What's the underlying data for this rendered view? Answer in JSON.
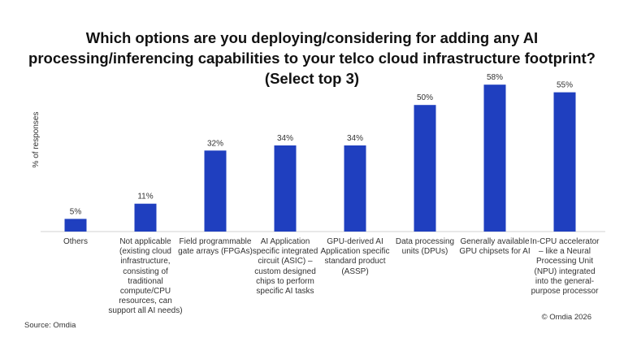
{
  "chart_data": {
    "type": "bar",
    "title": "Which options are you deploying/considering for adding any AI processing/inferencing capabilities to your telco cloud infrastructure footprint? (Select top 3)",
    "ylabel": "% of responses",
    "xlabel": "",
    "categories": [
      "Others",
      "Not applicable (existing cloud infrastructure, consisting of traditional compute/CPU resources, can support all AI needs)",
      "Field programmable gate arrays (FPGAs)",
      "AI Application specific integrated circuit (ASIC) – custom designed chips to perform specific AI tasks",
      "GPU-derived AI Application specific standard product (ASSP)",
      "Data processing units (DPUs)",
      "Generally available GPU chipsets for AI",
      "In-CPU accelerator – like a Neural Processing Unit (NPU) integrated into the general-purpose processor"
    ],
    "values": [
      5,
      11,
      32,
      34,
      34,
      50,
      58,
      55
    ],
    "data_labels": [
      "5%",
      "11%",
      "32%",
      "34%",
      "34%",
      "50%",
      "58%",
      "55%"
    ],
    "ylim": [
      0,
      60
    ],
    "grid": false,
    "bar_color": "#1f3fbf"
  },
  "footer": {
    "source": "Source: Omdia",
    "copyright": "© Omdia 2026"
  }
}
